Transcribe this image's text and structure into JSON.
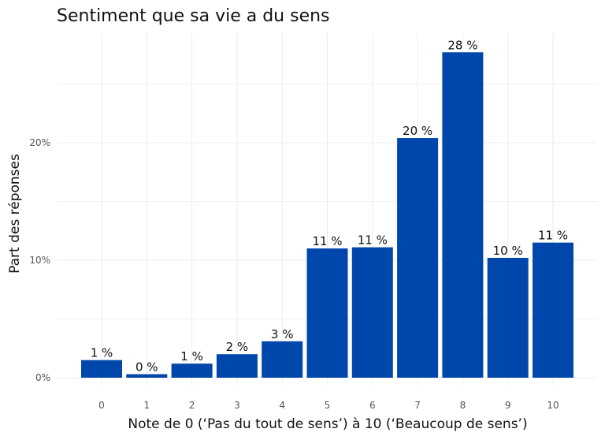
{
  "chart_data": {
    "type": "bar",
    "title": "Sentiment que sa vie a du sens",
    "xlabel": "Note de 0 (‘Pas du tout de sens’) à 10 (‘Beaucoup de sens’)",
    "ylabel": "Part des réponses",
    "categories": [
      "0",
      "1",
      "2",
      "3",
      "4",
      "5",
      "6",
      "7",
      "8",
      "9",
      "10"
    ],
    "values": [
      1.5,
      0.3,
      1.2,
      2.0,
      3.1,
      11.0,
      11.1,
      20.4,
      27.7,
      10.2,
      11.5
    ],
    "data_labels": [
      "1 %",
      "0 %",
      "1 %",
      "2 %",
      "3 %",
      "11 %",
      "11 %",
      "20 %",
      "28 %",
      "10 %",
      "11 %"
    ],
    "y_ticks": [
      0,
      10,
      20
    ],
    "y_tick_labels": [
      "0%",
      "10%",
      "20%"
    ],
    "ylim": [
      0,
      30
    ],
    "grid": true,
    "bar_color": "#0047AB"
  }
}
